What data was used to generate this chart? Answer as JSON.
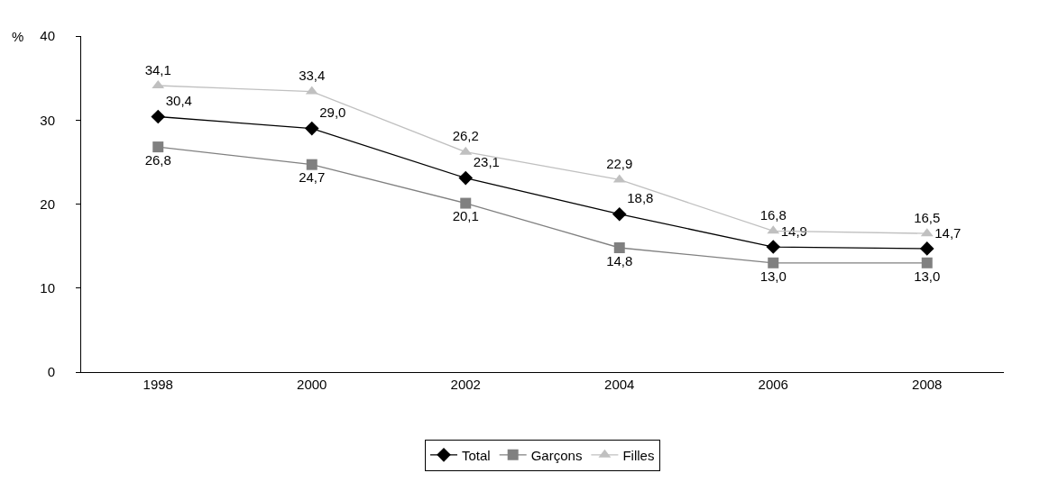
{
  "chart_data": {
    "type": "line",
    "ylabel": "%",
    "categories": [
      "1998",
      "2000",
      "2002",
      "2004",
      "2006",
      "2008"
    ],
    "series": [
      {
        "name": "Total",
        "color": "#000000",
        "marker": "diamond",
        "values": [
          30.4,
          29.0,
          23.1,
          18.8,
          14.9,
          14.7
        ],
        "value_labels": [
          "30,4",
          "29,0",
          "23,1",
          "18,8",
          "14,9",
          "14,7"
        ]
      },
      {
        "name": "Garçons",
        "color": "#808080",
        "marker": "square",
        "values": [
          26.8,
          24.7,
          20.1,
          14.8,
          13.0,
          13.0
        ],
        "value_labels": [
          "26,8",
          "24,7",
          "20,1",
          "14,8",
          "13,0",
          "13,0"
        ]
      },
      {
        "name": "Filles",
        "color": "#c0c0c0",
        "marker": "triangle",
        "values": [
          34.1,
          33.4,
          26.2,
          22.9,
          16.8,
          16.5
        ],
        "value_labels": [
          "34,1",
          "33,4",
          "26,2",
          "22,9",
          "16,8",
          "16,5"
        ]
      }
    ],
    "ylim": [
      0,
      40
    ],
    "yticks": [
      0,
      10,
      20,
      30,
      40
    ],
    "legend": "bottom",
    "line_style": "solid"
  }
}
